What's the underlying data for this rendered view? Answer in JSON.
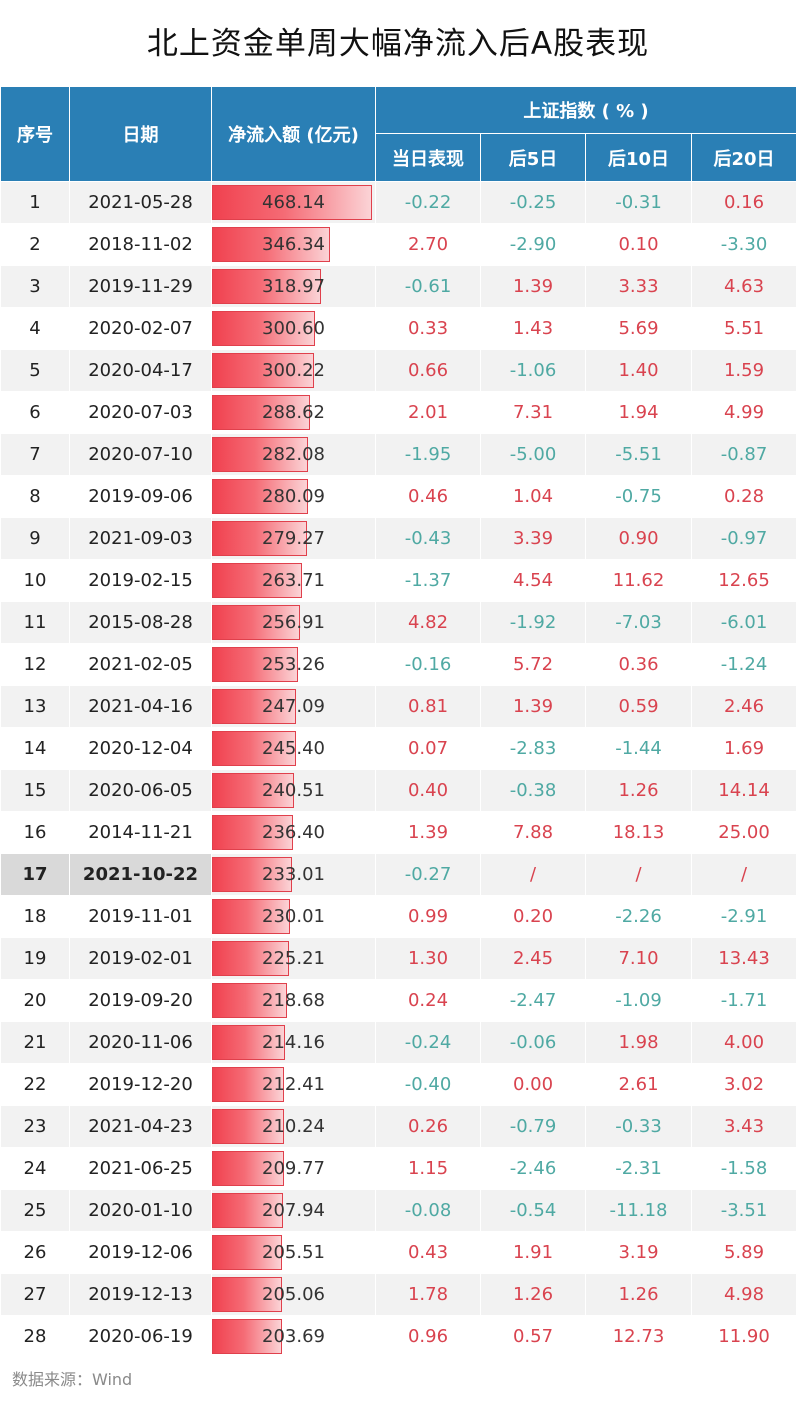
{
  "title": "北上资金单周大幅净流入后A股表现",
  "source": "数据来源：Wind",
  "colors": {
    "header_bg": "#2a7fb5",
    "positive": "#d9434f",
    "negative": "#4fa9a3",
    "bar": "#f0414f"
  },
  "chart_data": {
    "type": "table",
    "headers": {
      "index": "序号",
      "date": "日期",
      "net_inflow": "净流入额 (亿元)",
      "group": "上证指数 ( % )",
      "day0": "当日表现",
      "day5": "后5日",
      "day10": "后10日",
      "day20": "后20日"
    },
    "bar_max": 468.14,
    "highlight_index": "17",
    "rows": [
      {
        "idx": "1",
        "date": "2021-05-28",
        "flow": "468.14",
        "d0": "-0.22",
        "d5": "-0.25",
        "d10": "-0.31",
        "d20": "0.16"
      },
      {
        "idx": "2",
        "date": "2018-11-02",
        "flow": "346.34",
        "d0": "2.70",
        "d5": "-2.90",
        "d10": "0.10",
        "d20": "-3.30"
      },
      {
        "idx": "3",
        "date": "2019-11-29",
        "flow": "318.97",
        "d0": "-0.61",
        "d5": "1.39",
        "d10": "3.33",
        "d20": "4.63"
      },
      {
        "idx": "4",
        "date": "2020-02-07",
        "flow": "300.60",
        "d0": "0.33",
        "d5": "1.43",
        "d10": "5.69",
        "d20": "5.51"
      },
      {
        "idx": "5",
        "date": "2020-04-17",
        "flow": "300.22",
        "d0": "0.66",
        "d5": "-1.06",
        "d10": "1.40",
        "d20": "1.59"
      },
      {
        "idx": "6",
        "date": "2020-07-03",
        "flow": "288.62",
        "d0": "2.01",
        "d5": "7.31",
        "d10": "1.94",
        "d20": "4.99"
      },
      {
        "idx": "7",
        "date": "2020-07-10",
        "flow": "282.08",
        "d0": "-1.95",
        "d5": "-5.00",
        "d10": "-5.51",
        "d20": "-0.87"
      },
      {
        "idx": "8",
        "date": "2019-09-06",
        "flow": "280.09",
        "d0": "0.46",
        "d5": "1.04",
        "d10": "-0.75",
        "d20": "0.28"
      },
      {
        "idx": "9",
        "date": "2021-09-03",
        "flow": "279.27",
        "d0": "-0.43",
        "d5": "3.39",
        "d10": "0.90",
        "d20": "-0.97"
      },
      {
        "idx": "10",
        "date": "2019-02-15",
        "flow": "263.71",
        "d0": "-1.37",
        "d5": "4.54",
        "d10": "11.62",
        "d20": "12.65"
      },
      {
        "idx": "11",
        "date": "2015-08-28",
        "flow": "256.91",
        "d0": "4.82",
        "d5": "-1.92",
        "d10": "-7.03",
        "d20": "-6.01"
      },
      {
        "idx": "12",
        "date": "2021-02-05",
        "flow": "253.26",
        "d0": "-0.16",
        "d5": "5.72",
        "d10": "0.36",
        "d20": "-1.24"
      },
      {
        "idx": "13",
        "date": "2021-04-16",
        "flow": "247.09",
        "d0": "0.81",
        "d5": "1.39",
        "d10": "0.59",
        "d20": "2.46"
      },
      {
        "idx": "14",
        "date": "2020-12-04",
        "flow": "245.40",
        "d0": "0.07",
        "d5": "-2.83",
        "d10": "-1.44",
        "d20": "1.69"
      },
      {
        "idx": "15",
        "date": "2020-06-05",
        "flow": "240.51",
        "d0": "0.40",
        "d5": "-0.38",
        "d10": "1.26",
        "d20": "14.14"
      },
      {
        "idx": "16",
        "date": "2014-11-21",
        "flow": "236.40",
        "d0": "1.39",
        "d5": "7.88",
        "d10": "18.13",
        "d20": "25.00"
      },
      {
        "idx": "17",
        "date": "2021-10-22",
        "flow": "233.01",
        "d0": "-0.27",
        "d5": "/",
        "d10": "/",
        "d20": "/"
      },
      {
        "idx": "18",
        "date": "2019-11-01",
        "flow": "230.01",
        "d0": "0.99",
        "d5": "0.20",
        "d10": "-2.26",
        "d20": "-2.91"
      },
      {
        "idx": "19",
        "date": "2019-02-01",
        "flow": "225.21",
        "d0": "1.30",
        "d5": "2.45",
        "d10": "7.10",
        "d20": "13.43"
      },
      {
        "idx": "20",
        "date": "2019-09-20",
        "flow": "218.68",
        "d0": "0.24",
        "d5": "-2.47",
        "d10": "-1.09",
        "d20": "-1.71"
      },
      {
        "idx": "21",
        "date": "2020-11-06",
        "flow": "214.16",
        "d0": "-0.24",
        "d5": "-0.06",
        "d10": "1.98",
        "d20": "4.00"
      },
      {
        "idx": "22",
        "date": "2019-12-20",
        "flow": "212.41",
        "d0": "-0.40",
        "d5": "0.00",
        "d10": "2.61",
        "d20": "3.02"
      },
      {
        "idx": "23",
        "date": "2021-04-23",
        "flow": "210.24",
        "d0": "0.26",
        "d5": "-0.79",
        "d10": "-0.33",
        "d20": "3.43"
      },
      {
        "idx": "24",
        "date": "2021-06-25",
        "flow": "209.77",
        "d0": "1.15",
        "d5": "-2.46",
        "d10": "-2.31",
        "d20": "-1.58"
      },
      {
        "idx": "25",
        "date": "2020-01-10",
        "flow": "207.94",
        "d0": "-0.08",
        "d5": "-0.54",
        "d10": "-11.18",
        "d20": "-3.51"
      },
      {
        "idx": "26",
        "date": "2019-12-06",
        "flow": "205.51",
        "d0": "0.43",
        "d5": "1.91",
        "d10": "3.19",
        "d20": "5.89"
      },
      {
        "idx": "27",
        "date": "2019-12-13",
        "flow": "205.06",
        "d0": "1.78",
        "d5": "1.26",
        "d10": "1.26",
        "d20": "4.98"
      },
      {
        "idx": "28",
        "date": "2020-06-19",
        "flow": "203.69",
        "d0": "0.96",
        "d5": "0.57",
        "d10": "12.73",
        "d20": "11.90"
      }
    ]
  }
}
